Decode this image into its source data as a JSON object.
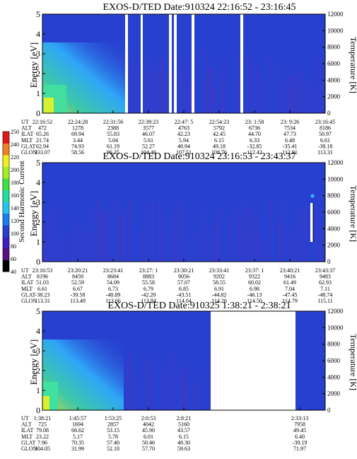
{
  "colors": {
    "background": "#2840d0",
    "stripe": "#7a2aa0",
    "gap": "#ffffff",
    "hot_cyan": "#30b8ff",
    "hot_green": "#40e0a0",
    "hot_yellow": "#d8f030"
  },
  "chart_data": [
    {
      "type": "heatmap",
      "title": "EXOS-D/TED   Date:910324   22:16:52 - 23:16:45",
      "ylabel": "Energy [eV]",
      "y2label": "Temperature [K]",
      "ylim": [
        0,
        5
      ],
      "y2lim": [
        0,
        12000
      ],
      "yticks": [
        "0",
        "1",
        "2",
        "3",
        "4",
        "5"
      ],
      "y2ticks": [
        "0",
        "2000",
        "4000",
        "6000",
        "8000",
        "10000",
        "12000"
      ],
      "ephemeris": {
        "labels": [
          "UT",
          "ALT",
          "ILAT",
          "MLT",
          "GLAT",
          "GLON"
        ],
        "columns": [
          [
            "22:16:52",
            "472",
            "65.26",
            "21.74",
            "62.94",
            "333.07"
          ],
          [
            "22:24:28",
            "1278",
            "69.94",
            "3.44",
            "74.93",
            "58.56"
          ],
          [
            "22:31:56",
            "2388",
            "55.83",
            "5.04",
            "61.19",
            "96.35"
          ],
          [
            "22:39:23",
            "3577",
            "46.07",
            "5.61",
            "52.27",
            "104.46"
          ],
          [
            "22:47: 5",
            "4763",
            "42.23",
            "5.94",
            "48.94",
            "107.51"
          ],
          [
            "22:54:23",
            "5792",
            "42.45",
            "6.15",
            "49.18",
            "108.76"
          ],
          [
            "23: 1:58",
            "6736",
            "44.70",
            "6.33",
            "-32.85",
            "112.42"
          ],
          [
            "23: 9:26",
            "7534",
            "47.73",
            "6.48",
            "-35.41",
            "112.91"
          ],
          [
            "23:16:45",
            "8186",
            "50.97",
            "6.61",
            "-38.18",
            "113.31"
          ]
        ]
      }
    },
    {
      "type": "heatmap",
      "title": "EXOS-D/TED   Date:910324   23:16:53 - 23:43:37",
      "ylabel": "Energy [eV]",
      "y2label": "Temperature [K]",
      "ylim": [
        0,
        5
      ],
      "y2lim": [
        0,
        12000
      ],
      "yticks": [
        "0",
        "1",
        "2",
        "3",
        "4",
        "5"
      ],
      "y2ticks": [
        "0",
        "2000",
        "4000",
        "6000",
        "8000",
        "10000",
        "12000"
      ],
      "ephemeris": {
        "labels": [
          "UT",
          "ALT",
          "ILAT",
          "MLT",
          "GLAT",
          "GLON"
        ],
        "columns": [
          [
            "23:16:53",
            "8196",
            "51.03",
            "6.61",
            "-38.23",
            "113.31"
          ],
          [
            "23:20:21",
            "8459",
            "52.59",
            "6.67",
            "-39.58",
            "113.49"
          ],
          [
            "23:23:41",
            "8684",
            "54.09",
            "6.73",
            "-40.89",
            "113.66"
          ],
          [
            "23:27: 1",
            "8883",
            "55.58",
            "6.79",
            "-42.20",
            "113.84"
          ],
          [
            "23:30:21",
            "9056",
            "57.07",
            "6.85",
            "-43.51",
            "114.04"
          ],
          [
            "23:33:41",
            "9202",
            "58.55",
            "6.91",
            "-44.82",
            "114.26"
          ],
          [
            "23:37: 1",
            "9322",
            "60.02",
            "6.98",
            "-46.13",
            "114.50"
          ],
          [
            "23:40:21",
            "9416",
            "61.49",
            "7.04",
            "-47.45",
            "114.79"
          ],
          [
            "23:43:37",
            "9483",
            "62.93",
            "7.11",
            "-48.74",
            "115.11"
          ]
        ]
      }
    },
    {
      "type": "heatmap",
      "title": "EXOS-D/TED   Date:910325   1:38:21 - 2:38:21",
      "ylabel": "Energy [eV]",
      "y2label": "Temperature [K]",
      "ylim": [
        0,
        5
      ],
      "y2lim": [
        0,
        12000
      ],
      "yticks": [
        "0",
        "1",
        "2",
        "3",
        "4",
        "5"
      ],
      "y2ticks": [
        "0",
        "2000",
        "4000",
        "6000",
        "8000",
        "10000",
        "12000"
      ],
      "ephemeris": {
        "labels": [
          "UT",
          "ALT",
          "ILAT",
          "MLT",
          "GLAT",
          "GLON"
        ],
        "columns": [
          [
            "1:38:21",
            "725",
            "79.08",
            "23.22",
            "7.96",
            "304.05"
          ],
          [
            "1:45:57",
            "1694",
            "66.62",
            "5.17",
            "70.35",
            "31.99"
          ],
          [
            "1:53:25",
            "2857",
            "53.15",
            "5.78",
            "57.40",
            "52.18"
          ],
          [
            "2:0:53",
            "4042",
            "45.90",
            "6.01",
            "50.46",
            "57.70"
          ],
          [
            "2:8:21",
            "5160",
            "43.57",
            "6.15",
            "48.30",
            "59.63"
          ],
          [
            "2:33:13",
            "7958",
            "49.45",
            "6.40",
            "-39.19",
            "71.97"
          ]
        ]
      }
    }
  ],
  "colorbar": {
    "label": "Second Harmonic Current",
    "ticks": [
      "40",
      "60",
      "80",
      "100",
      "120",
      "140",
      "160",
      "180",
      "200",
      "220",
      "240",
      "250"
    ],
    "colors": [
      "#000000",
      "#5a1080",
      "#4020c0",
      "#2840d0",
      "#1a7ef0",
      "#20c8f0",
      "#20e0a0",
      "#40e040",
      "#a0f020",
      "#f0f020",
      "#f08020",
      "#e01818"
    ]
  }
}
